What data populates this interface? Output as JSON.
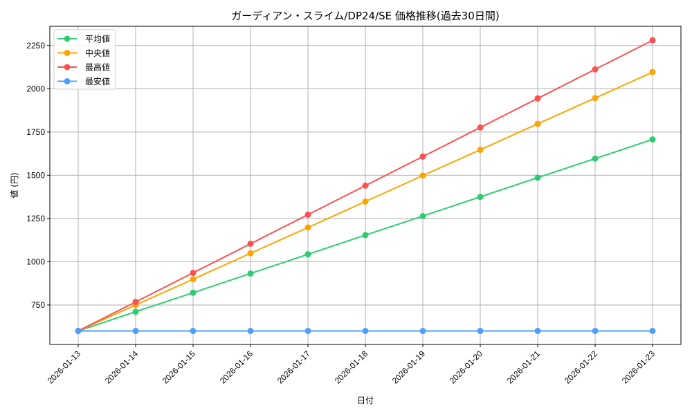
{
  "chart_data": {
    "type": "line",
    "title": "ガーディアン・スライム/DP24/SE 価格推移(過去30日間)",
    "xlabel": "日付",
    "ylabel": "値 (円)",
    "x": [
      "2026-01-13",
      "2026-01-14",
      "2026-01-15",
      "2026-01-16",
      "2026-01-17",
      "2026-01-18",
      "2026-01-19",
      "2026-01-20",
      "2026-01-21",
      "2026-01-22",
      "2026-01-23"
    ],
    "series": [
      {
        "name": "平均値",
        "color": "#2ecc71",
        "values": [
          600,
          711,
          821,
          932,
          1043,
          1154,
          1264,
          1375,
          1486,
          1596,
          1707
        ]
      },
      {
        "name": "中央値",
        "color": "#ffa500",
        "values": [
          600,
          750,
          899,
          1049,
          1198,
          1348,
          1498,
          1647,
          1797,
          1946,
          2096
        ]
      },
      {
        "name": "最高値",
        "color": "#ff5050",
        "values": [
          600,
          768,
          936,
          1104,
          1272,
          1440,
          1608,
          1776,
          1944,
          2112,
          2280
        ]
      },
      {
        "name": "最安値",
        "color": "#4d9eff",
        "values": [
          600,
          600,
          600,
          600,
          600,
          600,
          600,
          600,
          600,
          600,
          600
        ]
      }
    ],
    "yticks": [
      750,
      1000,
      1250,
      1500,
      1750,
      2000,
      2250
    ],
    "ylim": [
      522,
      2361
    ],
    "grid": true,
    "legend_position": "upper left",
    "markers": "circle"
  }
}
